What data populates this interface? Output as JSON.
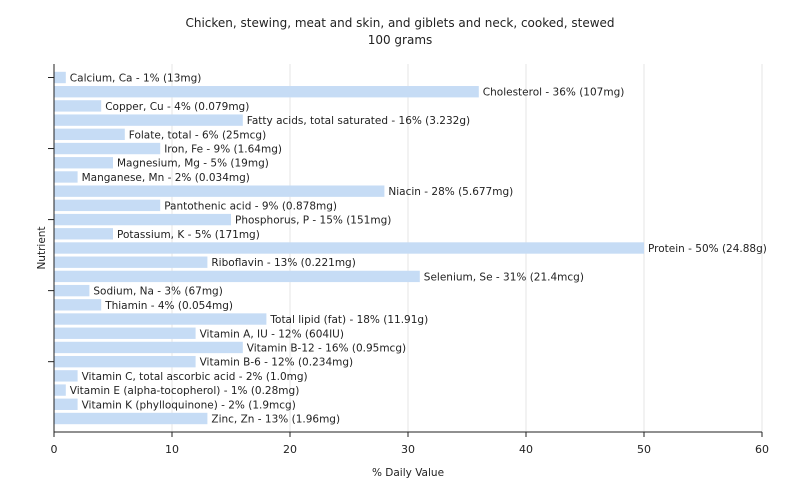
{
  "chart_data": {
    "type": "bar",
    "orientation": "horizontal",
    "title": "Chicken, stewing, meat and skin, and giblets and neck, cooked, stewed",
    "subtitle": "100 grams",
    "xlabel": "% Daily Value",
    "ylabel": "Nutrient",
    "xlim": [
      0,
      60
    ],
    "xticks": [
      0,
      10,
      20,
      30,
      40,
      50,
      60
    ],
    "grid": true,
    "bar_color": "#c6dcf5",
    "categories": [
      "Calcium, Ca",
      "Cholesterol",
      "Copper, Cu",
      "Fatty acids, total saturated",
      "Folate, total",
      "Iron, Fe",
      "Magnesium, Mg",
      "Manganese, Mn",
      "Niacin",
      "Pantothenic acid",
      "Phosphorus, P",
      "Potassium, K",
      "Protein",
      "Riboflavin",
      "Selenium, Se",
      "Sodium, Na",
      "Thiamin",
      "Total lipid (fat)",
      "Vitamin A, IU",
      "Vitamin B-12",
      "Vitamin B-6",
      "Vitamin C, total ascorbic acid",
      "Vitamin E (alpha-tocopherol)",
      "Vitamin K (phylloquinone)",
      "Zinc, Zn"
    ],
    "values": [
      1,
      36,
      4,
      16,
      6,
      9,
      5,
      2,
      28,
      9,
      15,
      5,
      50,
      13,
      31,
      3,
      4,
      18,
      12,
      16,
      12,
      2,
      1,
      2,
      13
    ],
    "labels": [
      "Calcium, Ca - 1% (13mg)",
      "Cholesterol - 36% (107mg)",
      "Copper, Cu - 4% (0.079mg)",
      "Fatty acids, total saturated - 16% (3.232g)",
      "Folate, total - 6% (25mcg)",
      "Iron, Fe - 9% (1.64mg)",
      "Magnesium, Mg - 5% (19mg)",
      "Manganese, Mn - 2% (0.034mg)",
      "Niacin - 28% (5.677mg)",
      "Pantothenic acid - 9% (0.878mg)",
      "Phosphorus, P - 15% (151mg)",
      "Potassium, K - 5% (171mg)",
      "Protein - 50% (24.88g)",
      "Riboflavin - 13% (0.221mg)",
      "Selenium, Se - 31% (21.4mcg)",
      "Sodium, Na - 3% (67mg)",
      "Thiamin - 4% (0.054mg)",
      "Total lipid (fat) - 18% (11.91g)",
      "Vitamin A, IU - 12% (604IU)",
      "Vitamin B-12 - 16% (0.95mcg)",
      "Vitamin B-6 - 12% (0.234mg)",
      "Vitamin C, total ascorbic acid - 2% (1.0mg)",
      "Vitamin E (alpha-tocopherol) - 1% (0.28mg)",
      "Vitamin K (phylloquinone) - 2% (1.9mcg)",
      "Zinc, Zn - 13% (1.96mg)"
    ]
  }
}
